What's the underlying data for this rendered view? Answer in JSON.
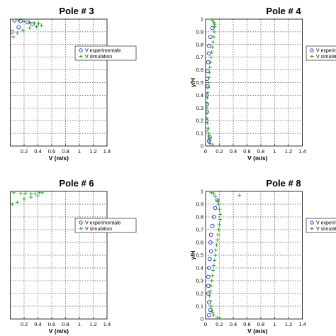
{
  "chart_data": [
    {
      "type": "scatter",
      "title": "Pole # 3",
      "xlabel": "V (m/s)",
      "ylabel": "",
      "xlim": [
        0,
        1.4
      ],
      "ylim": [
        0,
        1
      ],
      "xticks": [
        "0.2",
        "0.4",
        "0.6",
        "0.8",
        "1",
        "1.2",
        "1.4"
      ],
      "yticks": [],
      "grid": true,
      "legend_position": "upper-right",
      "legend": [
        "V experimentale",
        "V simulation"
      ],
      "series": [
        {
          "name": "V experimentale",
          "marker": "circle",
          "color": "#1f1fd0",
          "points": [
            [
              0.06,
              0.99
            ],
            [
              0.15,
              0.985
            ],
            [
              0.25,
              0.975
            ],
            [
              0.32,
              0.96
            ],
            [
              0.12,
              0.935
            ],
            [
              0.02,
              0.9
            ]
          ]
        },
        {
          "name": "V simulation",
          "marker": "plus",
          "color": "#22a022",
          "points": [
            [
              0.04,
              1.0
            ],
            [
              0.12,
              0.99
            ],
            [
              0.2,
              0.98
            ],
            [
              0.28,
              0.975
            ],
            [
              0.35,
              0.97
            ],
            [
              0.41,
              0.965
            ],
            [
              0.45,
              0.95
            ],
            [
              0.38,
              0.94
            ],
            [
              0.28,
              0.93
            ],
            [
              0.18,
              0.91
            ],
            [
              0.1,
              0.89
            ],
            [
              0.04,
              0.86
            ]
          ]
        }
      ]
    },
    {
      "type": "scatter",
      "title": "Pole # 4",
      "xlabel": "V (m/s)",
      "ylabel": "y/H",
      "xlim": [
        0,
        1.4
      ],
      "ylim": [
        0,
        1
      ],
      "xticks": [
        "0",
        "0.2",
        "0.4",
        "0.6",
        "0.8",
        "1",
        "1.2",
        "1.4"
      ],
      "yticks": [
        "0",
        "0.1",
        "0.2",
        "0.3",
        "0.4",
        "0.5",
        "0.6",
        "0.7",
        "0.8",
        "0.9",
        "1"
      ],
      "grid": true,
      "legend_position": "upper-right",
      "legend": [
        "V experimentale",
        "V simulation"
      ],
      "series": [
        {
          "name": "V experimentale",
          "marker": "circle",
          "color": "#1f1fd0",
          "points": [
            [
              0.1,
              0.93
            ],
            [
              0.07,
              0.86
            ],
            [
              0.05,
              0.79
            ],
            [
              0.05,
              0.73
            ],
            [
              0.04,
              0.66
            ],
            [
              0.03,
              0.59
            ],
            [
              0.02,
              0.53
            ],
            [
              0.03,
              0.47
            ],
            [
              0.01,
              0.4
            ],
            [
              0.02,
              0.33
            ],
            [
              0.02,
              0.27
            ],
            [
              0.01,
              0.2
            ],
            [
              0.01,
              0.13
            ],
            [
              0.06,
              0.07
            ],
            [
              0.05,
              0.04
            ]
          ]
        },
        {
          "name": "V simulation",
          "marker": "plus",
          "color": "#22a022",
          "points": [
            [
              0.07,
              1.0
            ],
            [
              0.1,
              0.99
            ],
            [
              0.12,
              0.975
            ],
            [
              0.13,
              0.96
            ],
            [
              0.13,
              0.94
            ],
            [
              0.125,
              0.9
            ],
            [
              0.12,
              0.86
            ],
            [
              0.11,
              0.82
            ],
            [
              0.1,
              0.78
            ],
            [
              0.09,
              0.74
            ],
            [
              0.08,
              0.7
            ],
            [
              0.07,
              0.66
            ],
            [
              0.06,
              0.62
            ],
            [
              0.055,
              0.58
            ],
            [
              0.05,
              0.54
            ],
            [
              0.04,
              0.5
            ],
            [
              0.035,
              0.46
            ],
            [
              0.03,
              0.42
            ],
            [
              0.025,
              0.38
            ],
            [
              0.02,
              0.34
            ],
            [
              0.02,
              0.3
            ],
            [
              0.02,
              0.26
            ],
            [
              0.02,
              0.22
            ],
            [
              0.03,
              0.18
            ],
            [
              0.04,
              0.14
            ],
            [
              0.045,
              0.1
            ],
            [
              0.05,
              0.08
            ],
            [
              0.06,
              0.06
            ],
            [
              0.06,
              0.04
            ],
            [
              0.06,
              0.02
            ],
            [
              0.1,
              0.01
            ]
          ]
        }
      ]
    },
    {
      "type": "scatter",
      "title": "Pole # 6",
      "xlabel": "V (m/s)",
      "ylabel": "",
      "xlim": [
        0,
        1.4
      ],
      "ylim": [
        0,
        1
      ],
      "xticks": [
        "0.2",
        "0.4",
        "0.6",
        "0.8",
        "1",
        "1.2",
        "1.4"
      ],
      "yticks": [],
      "grid": true,
      "legend_position": "upper-right",
      "legend": [
        "V experimentale",
        "V simulation"
      ],
      "series": [
        {
          "name": "V experimentale",
          "marker": "circle",
          "color": "#1f1fd0",
          "points": []
        },
        {
          "name": "V simulation",
          "marker": "plus",
          "color": "#22a022",
          "points": [
            [
              0.05,
              0.99
            ],
            [
              0.15,
              0.985
            ],
            [
              0.22,
              0.985
            ],
            [
              0.3,
              0.98
            ],
            [
              0.36,
              0.98
            ],
            [
              0.42,
              0.99
            ],
            [
              0.46,
              0.99
            ],
            [
              0.4,
              0.965
            ],
            [
              0.3,
              0.955
            ],
            [
              0.2,
              0.94
            ],
            [
              0.1,
              0.915
            ],
            [
              0.03,
              0.9
            ]
          ]
        }
      ]
    },
    {
      "type": "scatter",
      "title": "Pole # 8",
      "xlabel": "V (m/s)",
      "ylabel": "y/H",
      "xlim": [
        0,
        1.4
      ],
      "ylim": [
        0,
        1
      ],
      "xticks": [
        "0",
        "0.2",
        "0.4",
        "0.6",
        "0.8",
        "1",
        "1.2",
        "1.4"
      ],
      "yticks": [
        "0",
        "0.1",
        "0.2",
        "0.3",
        "0.4",
        "0.5",
        "0.6",
        "0.7",
        "0.8",
        "0.9",
        "1"
      ],
      "grid": true,
      "legend_position": "upper-right",
      "legend": [
        "V experimentale",
        "V simulation"
      ],
      "series": [
        {
          "name": "V experimentale",
          "marker": "circle",
          "color": "#1f1fd0",
          "points": [
            [
              0.17,
              0.93
            ],
            [
              0.14,
              0.87
            ],
            [
              0.12,
              0.8
            ],
            [
              0.1,
              0.73
            ],
            [
              0.08,
              0.66
            ],
            [
              0.07,
              0.6
            ],
            [
              0.08,
              0.53
            ],
            [
              0.06,
              0.47
            ],
            [
              0.05,
              0.4
            ],
            [
              0.04,
              0.33
            ],
            [
              0.04,
              0.26
            ],
            [
              0.04,
              0.2
            ],
            [
              0.05,
              0.13
            ],
            [
              0.07,
              0.07
            ],
            [
              0.05,
              0.03
            ]
          ]
        },
        {
          "name": "V simulation",
          "marker": "plus",
          "color": "#22a022",
          "points": [
            [
              0.06,
              1.0
            ],
            [
              0.09,
              0.99
            ],
            [
              0.12,
              0.98
            ],
            [
              0.14,
              0.96
            ],
            [
              0.17,
              0.93
            ],
            [
              0.19,
              0.9
            ],
            [
              0.2,
              0.86
            ],
            [
              0.21,
              0.82
            ],
            [
              0.21,
              0.78
            ],
            [
              0.2,
              0.74
            ],
            [
              0.19,
              0.7
            ],
            [
              0.18,
              0.66
            ],
            [
              0.17,
              0.62
            ],
            [
              0.16,
              0.58
            ],
            [
              0.15,
              0.54
            ],
            [
              0.14,
              0.5
            ],
            [
              0.13,
              0.46
            ],
            [
              0.12,
              0.42
            ],
            [
              0.11,
              0.38
            ],
            [
              0.1,
              0.34
            ],
            [
              0.09,
              0.3
            ],
            [
              0.08,
              0.26
            ],
            [
              0.07,
              0.22
            ],
            [
              0.06,
              0.18
            ],
            [
              0.07,
              0.14
            ],
            [
              0.08,
              0.1
            ],
            [
              0.09,
              0.07
            ],
            [
              0.1,
              0.05
            ],
            [
              0.12,
              0.03
            ],
            [
              0.17,
              0.01
            ],
            [
              0.22,
              0.0
            ],
            [
              0.49,
              0.97
            ]
          ]
        }
      ]
    }
  ]
}
